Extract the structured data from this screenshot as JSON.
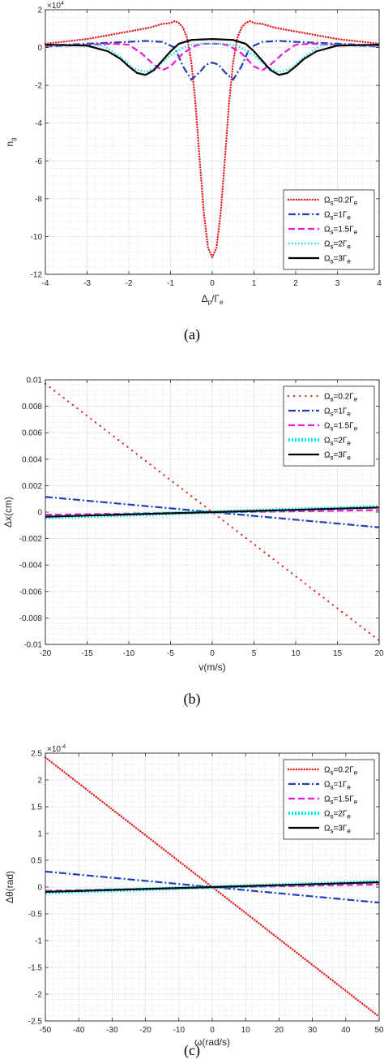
{
  "chart_data": [
    {
      "id": "a",
      "type": "line",
      "caption": "(a)",
      "xlabel_main": "Δ",
      "xlabel_sub": "p",
      "xlabel_tail": "/Γ",
      "xlabel_sub2": "e",
      "ylabel_main": "n",
      "ylabel_sub": "g",
      "multiplier_base": "×10",
      "multiplier_exp": "4",
      "xlim": [
        -4,
        4
      ],
      "ylim": [
        -12,
        2
      ],
      "xticks": [
        -4,
        -3,
        -2,
        -1,
        0,
        1,
        2,
        3,
        4
      ],
      "yticks": [
        2,
        0,
        -2,
        -4,
        -6,
        -8,
        -10,
        -12
      ],
      "grid": true,
      "legend_placement": "lower-right",
      "series": [
        {
          "name_main": "Ω",
          "name_sub": "s",
          "name_mid": "=0.2Γ",
          "name_sub2": "e",
          "color": "#e41a1c",
          "style": "dotted-dense",
          "x": [
            -4,
            -3,
            -2,
            -1.5,
            -1.2,
            -1.0,
            -0.9,
            -0.8,
            -0.7,
            -0.6,
            -0.5,
            -0.4,
            -0.3,
            -0.2,
            -0.1,
            0,
            0.1,
            0.2,
            0.3,
            0.4,
            0.5,
            0.6,
            0.7,
            0.8,
            0.9,
            1.0,
            1.2,
            1.5,
            2,
            3,
            4
          ],
          "y": [
            0.2,
            0.45,
            0.85,
            1.05,
            1.25,
            1.3,
            1.4,
            1.3,
            1.05,
            0.5,
            -0.8,
            -3.0,
            -6.0,
            -8.8,
            -10.6,
            -11.1,
            -10.6,
            -8.8,
            -6.0,
            -3.0,
            -0.8,
            0.5,
            1.05,
            1.3,
            1.4,
            1.3,
            1.25,
            1.05,
            0.85,
            0.45,
            0.2
          ]
        },
        {
          "name_main": "Ω",
          "name_sub": "s",
          "name_mid": "=1Γ",
          "name_sub2": "e",
          "color": "#1f3fb4",
          "style": "dashdot",
          "x": [
            -4,
            -3,
            -2,
            -1.6,
            -1.2,
            -0.9,
            -0.7,
            -0.5,
            -0.3,
            -0.15,
            0,
            0.15,
            0.3,
            0.5,
            0.7,
            0.9,
            1.2,
            1.6,
            2,
            3,
            4
          ],
          "y": [
            0.1,
            0.2,
            0.3,
            0.35,
            0.3,
            0,
            -1.0,
            -1.7,
            -1.3,
            -0.9,
            -0.8,
            -0.9,
            -1.3,
            -1.7,
            -1.0,
            0,
            0.3,
            0.35,
            0.3,
            0.2,
            0.1
          ]
        },
        {
          "name_main": "Ω",
          "name_sub": "s",
          "name_mid": "=1.5Γ",
          "name_sub2": "e",
          "color": "#e619d6",
          "style": "dashed",
          "x": [
            -4,
            -3,
            -2.4,
            -2,
            -1.7,
            -1.4,
            -1.2,
            -1,
            -0.7,
            -0.4,
            -0.2,
            0,
            0.2,
            0.4,
            0.7,
            1,
            1.2,
            1.4,
            1.7,
            2,
            2.4,
            3,
            4
          ],
          "y": [
            0.05,
            0.15,
            0.2,
            0.15,
            -0.3,
            -0.9,
            -1.2,
            -1.0,
            -0.3,
            0.1,
            0.2,
            0.2,
            0.2,
            0.1,
            -0.3,
            -1.0,
            -1.2,
            -0.9,
            -0.3,
            0.15,
            0.2,
            0.15,
            0.05
          ]
        },
        {
          "name_main": "Ω",
          "name_sub": "s",
          "name_mid": "=2Γ",
          "name_sub2": "e",
          "color": "#00e5e5",
          "style": "dotted",
          "x": [
            -4,
            -3,
            -2.6,
            -2.2,
            -1.9,
            -1.6,
            -1.3,
            -1,
            -0.6,
            -0.3,
            0,
            0.3,
            0.6,
            1,
            1.3,
            1.6,
            1.9,
            2.2,
            2.6,
            3,
            4
          ],
          "y": [
            0.05,
            0.15,
            0.1,
            -0.5,
            -1.1,
            -1.3,
            -1.0,
            -0.4,
            0.1,
            0.2,
            0.2,
            0.2,
            0.1,
            -0.4,
            -1.0,
            -1.3,
            -1.1,
            -0.5,
            0.1,
            0.15,
            0.05
          ]
        },
        {
          "name_main": "Ω",
          "name_sub": "s",
          "name_mid": "=3Γ",
          "name_sub2": "e",
          "color": "#000000",
          "style": "solid",
          "x": [
            -4,
            -3,
            -2.5,
            -2.2,
            -2.0,
            -1.8,
            -1.6,
            -1.4,
            -1.2,
            -1.0,
            -0.8,
            -0.5,
            0,
            0.5,
            0.8,
            1.0,
            1.2,
            1.4,
            1.6,
            1.8,
            2.0,
            2.2,
            2.5,
            3,
            4
          ],
          "y": [
            0.15,
            0.1,
            -0.2,
            -0.6,
            -1.0,
            -1.35,
            -1.45,
            -1.2,
            -0.7,
            -0.2,
            0.2,
            0.4,
            0.45,
            0.4,
            0.2,
            -0.2,
            -0.7,
            -1.2,
            -1.45,
            -1.35,
            -1.0,
            -0.6,
            -0.2,
            0.1,
            0.15
          ]
        }
      ]
    },
    {
      "id": "b",
      "type": "line",
      "caption": "(b)",
      "xlabel_main": "v(m/s)",
      "ylabel_main": "Δx(cm)",
      "xlim": [
        -20,
        20
      ],
      "ylim": [
        -0.01,
        0.01
      ],
      "xticks": [
        -20,
        -15,
        -10,
        -5,
        0,
        5,
        10,
        15,
        20
      ],
      "yticks": [
        0.01,
        0.008,
        0.006,
        0.004,
        0.002,
        0,
        -0.002,
        -0.004,
        -0.006,
        -0.008,
        -0.01
      ],
      "ytick_labels": [
        "0.01",
        "0.008",
        "0.006",
        "0.004",
        "0.002",
        "0",
        "-0.002",
        "-0.004",
        "-0.006",
        "-0.008",
        "-0.01"
      ],
      "grid": true,
      "legend_placement": "top-right",
      "series": [
        {
          "name_main": "Ω",
          "name_sub": "s",
          "name_mid": "=0.2Γ",
          "name_sub2": "e",
          "color": "#e41a1c",
          "style": "dotted-sparse",
          "x": [
            -20,
            20
          ],
          "y": [
            0.0097,
            -0.0097
          ]
        },
        {
          "name_main": "Ω",
          "name_sub": "s",
          "name_mid": "=1Γ",
          "name_sub2": "e",
          "color": "#1f3fb4",
          "style": "dashdot",
          "x": [
            -20,
            20
          ],
          "y": [
            0.00115,
            -0.00115
          ]
        },
        {
          "name_main": "Ω",
          "name_sub": "s",
          "name_mid": "=1.5Γ",
          "name_sub2": "e",
          "color": "#e619d6",
          "style": "dashed",
          "x": [
            -20,
            20
          ],
          "y": [
            -0.0002,
            0.00015
          ]
        },
        {
          "name_main": "Ω",
          "name_sub": "s",
          "name_mid": "=2Γ",
          "name_sub2": "e",
          "color": "#00e5e5",
          "style": "thick-dotted",
          "x": [
            -20,
            20
          ],
          "y": [
            -0.0004,
            0.0004
          ]
        },
        {
          "name_main": "Ω",
          "name_sub": "s",
          "name_mid": "=3Γ",
          "name_sub2": "e",
          "color": "#000000",
          "style": "solid",
          "x": [
            -20,
            20
          ],
          "y": [
            -0.00035,
            0.00035
          ]
        }
      ]
    },
    {
      "id": "c",
      "type": "line",
      "caption": "(c)",
      "xlabel_main": "ω(rad/s)",
      "ylabel_main": "Δθ(rad)",
      "multiplier_base": "×10",
      "multiplier_exp": "-4",
      "xlim": [
        -50,
        50
      ],
      "ylim": [
        -2.5,
        2.5
      ],
      "xticks": [
        -50,
        -40,
        -30,
        -20,
        -10,
        0,
        10,
        20,
        30,
        40,
        50
      ],
      "yticks": [
        2.5,
        2,
        1.5,
        1,
        0.5,
        0,
        -0.5,
        -1,
        -1.5,
        -2,
        -2.5
      ],
      "grid": true,
      "legend_placement": "top-right",
      "series": [
        {
          "name_main": "Ω",
          "name_sub": "s",
          "name_mid": "=0.2Γ",
          "name_sub2": "e",
          "color": "#e41a1c",
          "style": "dotted-dense",
          "x": [
            -50,
            50
          ],
          "y": [
            2.42,
            -2.42
          ]
        },
        {
          "name_main": "Ω",
          "name_sub": "s",
          "name_mid": "=1Γ",
          "name_sub2": "e",
          "color": "#1f3fb4",
          "style": "dashdot",
          "x": [
            -50,
            50
          ],
          "y": [
            0.29,
            -0.29
          ]
        },
        {
          "name_main": "Ω",
          "name_sub": "s",
          "name_mid": "=1.5Γ",
          "name_sub2": "e",
          "color": "#e619d6",
          "style": "dashed",
          "x": [
            -50,
            50
          ],
          "y": [
            -0.07,
            0.05
          ]
        },
        {
          "name_main": "Ω",
          "name_sub": "s",
          "name_mid": "=2Γ",
          "name_sub2": "e",
          "color": "#00e5e5",
          "style": "thick-dotted",
          "x": [
            -50,
            50
          ],
          "y": [
            -0.1,
            0.1
          ]
        },
        {
          "name_main": "Ω",
          "name_sub": "s",
          "name_mid": "=3Γ",
          "name_sub2": "e",
          "color": "#000000",
          "style": "solid",
          "x": [
            -50,
            50
          ],
          "y": [
            -0.09,
            0.09
          ]
        }
      ]
    }
  ]
}
